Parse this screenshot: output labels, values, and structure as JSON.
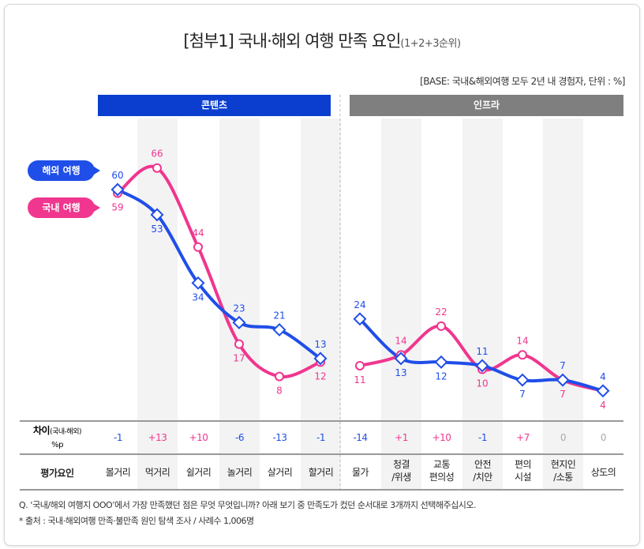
{
  "title": "[첨부1] 국내·해외 여행 만족 요인",
  "title_suffix": "(1+2+3순위)",
  "base_note": "[BASE: 국내&해외여행 모두 2년 내 경험자, 단위 : %]",
  "groups": [
    {
      "label": "콘텐츠",
      "color": "#0b3ecf"
    },
    {
      "label": "인프라",
      "color": "#7f7f7f"
    }
  ],
  "chart_data": {
    "type": "line",
    "categories": [
      "볼거리",
      "먹거리",
      "쉴거리",
      "놀거리",
      "살거리",
      "할거리",
      "물가",
      "청결\n/위생",
      "교통\n편의성",
      "안전\n/치안",
      "편의\n시설",
      "현지인\n/소통",
      "상도의"
    ],
    "series": [
      {
        "name": "해외 여행",
        "color": "#1f4ee8",
        "values": [
          60,
          53,
          34,
          23,
          21,
          13,
          24,
          13,
          12,
          11,
          7,
          7,
          4
        ]
      },
      {
        "name": "국내 여행",
        "color": "#f0368f",
        "values": [
          59,
          66,
          44,
          17,
          8,
          12,
          11,
          14,
          22,
          10,
          14,
          7,
          4
        ]
      }
    ],
    "ylim": [
      0,
      70
    ],
    "diff_label": "차이",
    "diff_label_sub": "(국내-해외)",
    "diff_unit": "%p",
    "diff": [
      "-1",
      "+13",
      "+10",
      "-6",
      "-13",
      "-1",
      "-14",
      "+1",
      "+10",
      "-1",
      "+7",
      "0",
      "0"
    ],
    "row_label": "평가요인"
  },
  "footnotes": [
    "Q. ‘국내/해외 여행지 OOO’에서 가장 만족했던 점은 무엇 무엇입니까? 아래 보기 중 만족도가 컸던 순서대로 3개까지 선택해주십시오.",
    "* 출처 : 국내·해외여행 만족·불만족 원인 탐색 조사 / 사례수 1,006명"
  ]
}
